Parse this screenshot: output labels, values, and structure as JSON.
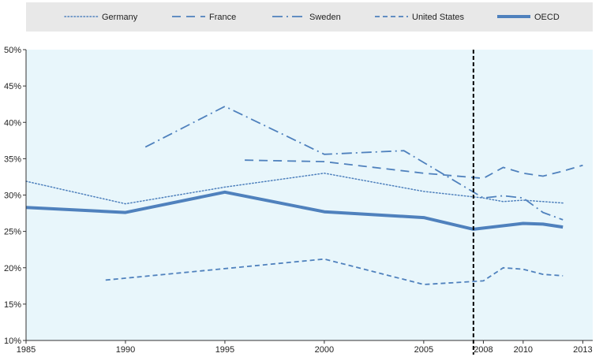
{
  "chart_data": {
    "type": "line",
    "title": "",
    "xlabel": "",
    "ylabel": "",
    "x_ticks": [
      "1985",
      "1990",
      "1995",
      "2000",
      "2005",
      "2008",
      "2010",
      "2013"
    ],
    "y_ticks": [
      "50%",
      "45%",
      "40%",
      "35%",
      "30%",
      "25%",
      "20%",
      "15%",
      "10%"
    ],
    "xlim": [
      1985,
      2013.5
    ],
    "ylim": [
      10,
      50
    ],
    "grid": false,
    "legend_position": "top",
    "reference_line": {
      "x": 2007.5,
      "style": "dashed",
      "color": "#000000"
    },
    "series": [
      {
        "name": "Germany",
        "style": "dotted",
        "width": 1.5,
        "x": [
          1985,
          1990,
          1995,
          2000,
          2005,
          2008,
          2009,
          2010,
          2011,
          2012
        ],
        "y": [
          31.9,
          28.8,
          31.1,
          33.0,
          30.5,
          29.6,
          29.1,
          29.3,
          29.1,
          28.9
        ]
      },
      {
        "name": "France",
        "style": "long-dash",
        "width": 1.8,
        "x": [
          1996,
          2000,
          2005,
          2008,
          2009,
          2010,
          2011,
          2012,
          2013
        ],
        "y": [
          34.8,
          34.6,
          33.0,
          32.3,
          33.8,
          33.0,
          32.6,
          33.3,
          34.1
        ]
      },
      {
        "name": "Sweden",
        "style": "dash-dot",
        "width": 1.8,
        "x": [
          1991,
          1995,
          2000,
          2004,
          2008,
          2009,
          2010,
          2011,
          2012
        ],
        "y": [
          36.6,
          42.2,
          35.6,
          36.1,
          29.6,
          29.9,
          29.6,
          27.6,
          26.6
        ]
      },
      {
        "name": "United States",
        "style": "dashed",
        "width": 1.8,
        "x": [
          1989,
          2000,
          2005,
          2008,
          2009,
          2010,
          2011,
          2012
        ],
        "y": [
          18.3,
          21.2,
          17.7,
          18.2,
          20.0,
          19.8,
          19.1,
          18.9
        ]
      },
      {
        "name": "OECD",
        "style": "solid",
        "width": 4,
        "x": [
          1985,
          1990,
          1995,
          2000,
          2005,
          2007.5,
          2010,
          2011,
          2012
        ],
        "y": [
          28.3,
          27.6,
          30.4,
          27.7,
          26.9,
          25.3,
          26.1,
          26.0,
          25.6
        ]
      }
    ]
  },
  "colors": {
    "line": "#4f81bd",
    "legend_background": "#e8e8e8",
    "plot_background": "#e8f6fb",
    "axis": "#333333",
    "reference_line": "#000000"
  }
}
